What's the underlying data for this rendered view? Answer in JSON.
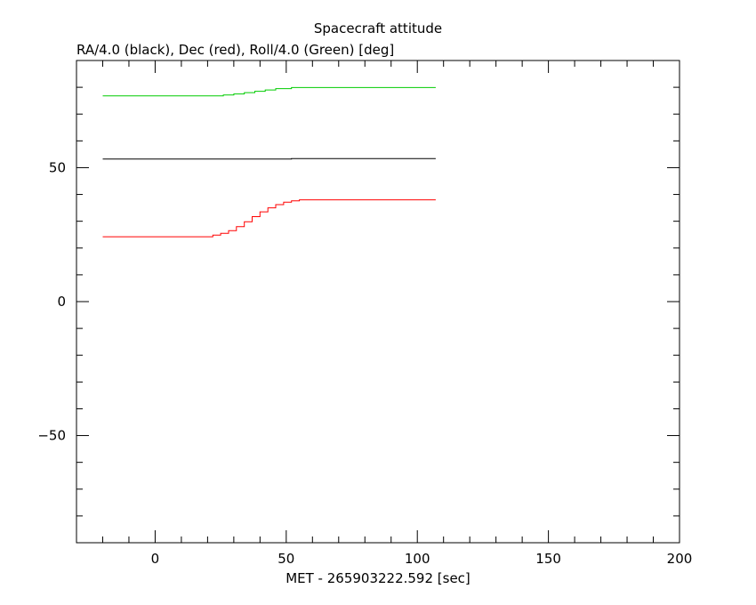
{
  "chart_data": {
    "type": "line",
    "title": "Spacecraft attitude",
    "ylabel": "RA/4.0 (black), Dec (red), Roll/4.0 (Green) [deg]",
    "xlabel": "MET - 265903222.592 [sec]",
    "xlim": [
      -30,
      200
    ],
    "ylim": [
      -90,
      90
    ],
    "x_ticks": [
      0,
      50,
      100,
      150,
      200
    ],
    "y_ticks": [
      -50,
      0,
      50
    ],
    "grid": false,
    "series": [
      {
        "color": "#000000",
        "step": true,
        "x": [
          -20,
          52,
          52,
          107
        ],
        "y": [
          53.2,
          53.2,
          53.4,
          53.4
        ]
      },
      {
        "color": "#ff0000",
        "step": true,
        "x": [
          -20,
          20,
          22,
          25,
          28,
          31,
          34,
          37,
          40,
          43,
          46,
          49,
          52,
          55,
          107
        ],
        "y": [
          24.2,
          24.2,
          24.8,
          25.5,
          26.5,
          28,
          29.8,
          31.7,
          33.5,
          35,
          36.2,
          37.1,
          37.6,
          38,
          38
        ]
      },
      {
        "color": "#00cc00",
        "step": true,
        "x": [
          -20,
          20,
          26,
          30,
          34,
          38,
          42,
          46,
          52,
          107
        ],
        "y": [
          76.8,
          76.8,
          77.1,
          77.5,
          78,
          78.5,
          79,
          79.5,
          79.9,
          79.9
        ]
      }
    ]
  }
}
